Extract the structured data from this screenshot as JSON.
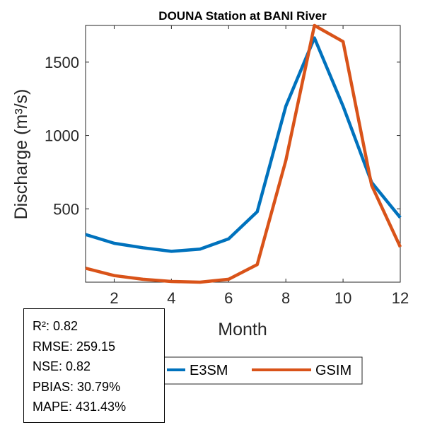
{
  "chart_data": {
    "type": "line",
    "title": "DOUNA  Station at  BANI  River",
    "xlabel": "Month",
    "ylabel": "Discharge (m³/s)",
    "xlim": [
      1,
      12
    ],
    "ylim": [
      0,
      1750
    ],
    "xticks": [
      2,
      4,
      6,
      8,
      10,
      12
    ],
    "yticks": [
      500,
      1000,
      1500
    ],
    "grid": false,
    "legend_position": "bottom",
    "x": [
      1,
      2,
      3,
      4,
      5,
      6,
      7,
      8,
      9,
      10,
      11,
      12
    ],
    "series": [
      {
        "name": "E3SM",
        "color": "#0072BD",
        "values": [
          325,
          265,
          235,
          210,
          225,
          295,
          480,
          1200,
          1665,
          1200,
          680,
          440
        ]
      },
      {
        "name": "GSIM",
        "color": "#D95319",
        "values": [
          95,
          45,
          20,
          5,
          0,
          20,
          120,
          830,
          1750,
          1640,
          660,
          240
        ]
      }
    ]
  },
  "stats": [
    "R²: 0.82",
    "RMSE: 259.15",
    "NSE: 0.82",
    "PBIAS: 30.79%",
    "MAPE: 431.43%"
  ]
}
